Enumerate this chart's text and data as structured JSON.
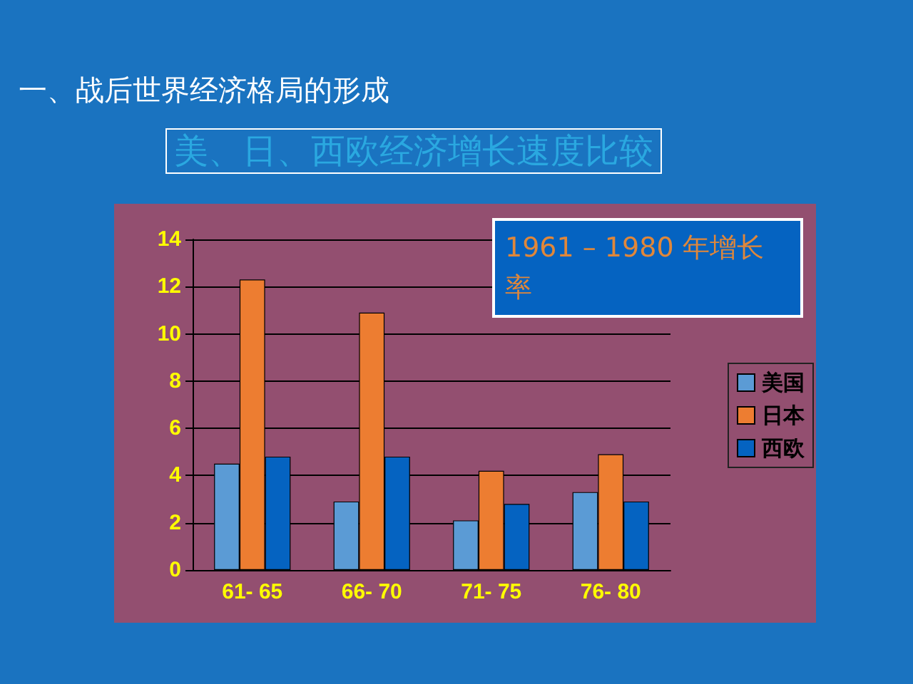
{
  "chart_data": {
    "type": "bar",
    "title": "一、战后世界经济格局的形成",
    "subtitle": "美、日、西欧经济增长速度比较",
    "annotations": [
      "1961 – 1980 年增长率"
    ],
    "categories": [
      "61- 65",
      "66- 70",
      "71- 75",
      "76- 80"
    ],
    "series": [
      {
        "name": "美国",
        "color": "#5b9bd5",
        "values": [
          4.5,
          2.9,
          2.1,
          3.3
        ]
      },
      {
        "name": "日本",
        "color": "#ed7d31",
        "values": [
          12.3,
          10.9,
          4.2,
          4.9
        ]
      },
      {
        "name": "西欧",
        "color": "#0563c1",
        "values": [
          4.8,
          4.8,
          2.8,
          2.9
        ]
      }
    ],
    "ylim": [
      0,
      14
    ],
    "yticks": [
      0,
      2,
      4,
      6,
      8,
      10,
      12,
      14
    ],
    "grid": true,
    "legend": "right"
  }
}
